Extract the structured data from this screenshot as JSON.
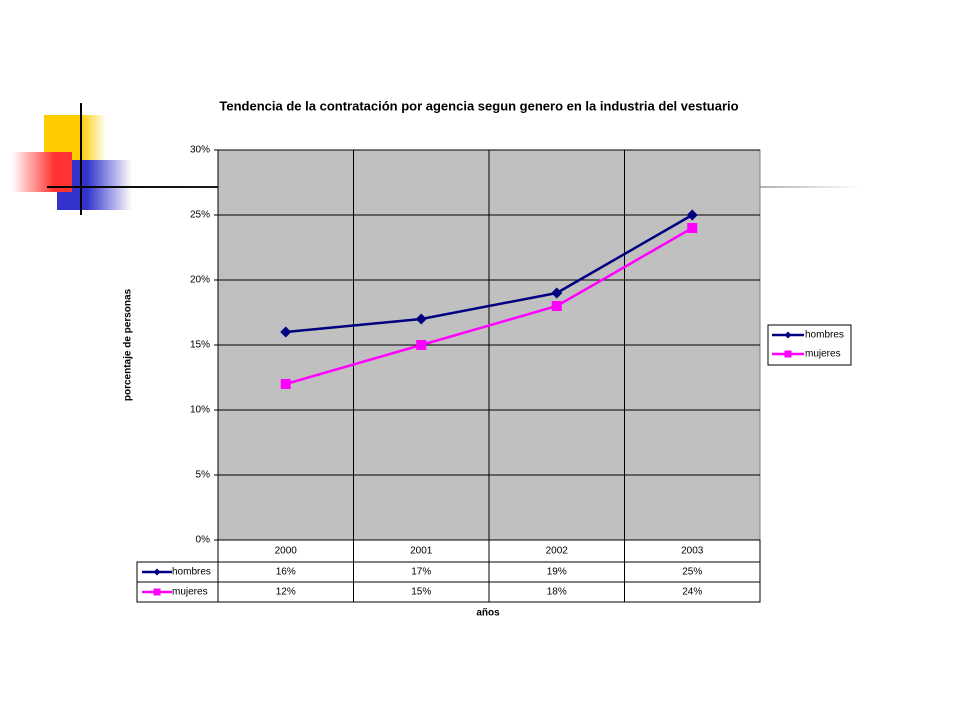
{
  "chart_data": {
    "type": "line",
    "title": "Tendencia de la contratación  por agencia segun genero en la industria del vestuario",
    "y_label": "porcentaje de personas",
    "x_label": "años",
    "categories": [
      "2000",
      "2001",
      "2002",
      "2003"
    ],
    "series": [
      {
        "name": "hombres",
        "color": "#000080",
        "marker": "diamond",
        "values": [
          16,
          17,
          19,
          25
        ],
        "value_labels": [
          "16%",
          "17%",
          "19%",
          "25%"
        ]
      },
      {
        "name": "mujeres",
        "color": "#ff00ff",
        "marker": "square",
        "values": [
          12,
          15,
          18,
          24
        ],
        "value_labels": [
          "12%",
          "15%",
          "18%",
          "24%"
        ]
      }
    ],
    "ylim": [
      0,
      30
    ],
    "yticks": [
      {
        "value": 0,
        "label": "0%"
      },
      {
        "value": 5,
        "label": "5%"
      },
      {
        "value": 10,
        "label": "10%"
      },
      {
        "value": 15,
        "label": "15%"
      },
      {
        "value": 20,
        "label": "20%"
      },
      {
        "value": 25,
        "label": "25%"
      },
      {
        "value": 30,
        "label": "30%"
      }
    ],
    "grid": true,
    "legend": "right"
  }
}
